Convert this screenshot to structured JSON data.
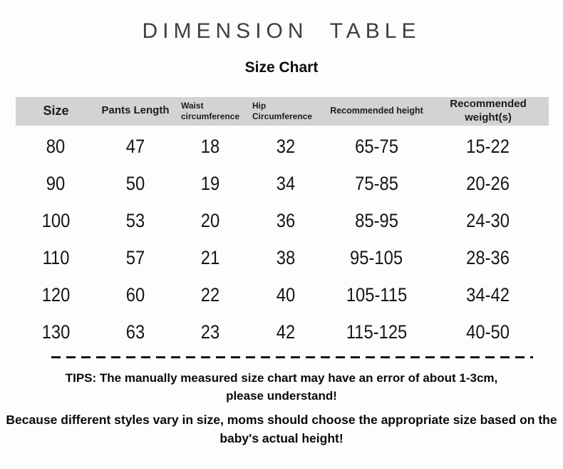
{
  "page": {
    "title": "DIMENSION  TABLE",
    "subtitle": "Size Chart"
  },
  "table": {
    "columns": [
      {
        "label": "Size"
      },
      {
        "label": "Pants Length"
      },
      {
        "label": "Waist\ncircumference"
      },
      {
        "label": "Hip\nCircumference"
      },
      {
        "label": "Recommended height"
      },
      {
        "label": "Recommended weight(s)"
      }
    ],
    "rows": [
      [
        "80",
        "47",
        "18",
        "32",
        "65-75",
        "15-22"
      ],
      [
        "90",
        "50",
        "19",
        "34",
        "75-85",
        "20-26"
      ],
      [
        "100",
        "53",
        "20",
        "36",
        "85-95",
        "24-30"
      ],
      [
        "110",
        "57",
        "21",
        "38",
        "95-105",
        "28-36"
      ],
      [
        "120",
        "60",
        "22",
        "40",
        "105-115",
        "34-42"
      ],
      [
        "130",
        "63",
        "23",
        "42",
        "115-125",
        "40-50"
      ]
    ]
  },
  "notes": {
    "tip1": "TIPS: The manually measured size chart may have an error of about 1-3cm,\nplease understand!",
    "tip2": "Because different styles vary in size, moms should choose the appropriate size based on the\nbaby's actual height!"
  },
  "colors": {
    "header_bg": "#d3d3d3",
    "title_color": "#3f3f3f"
  }
}
